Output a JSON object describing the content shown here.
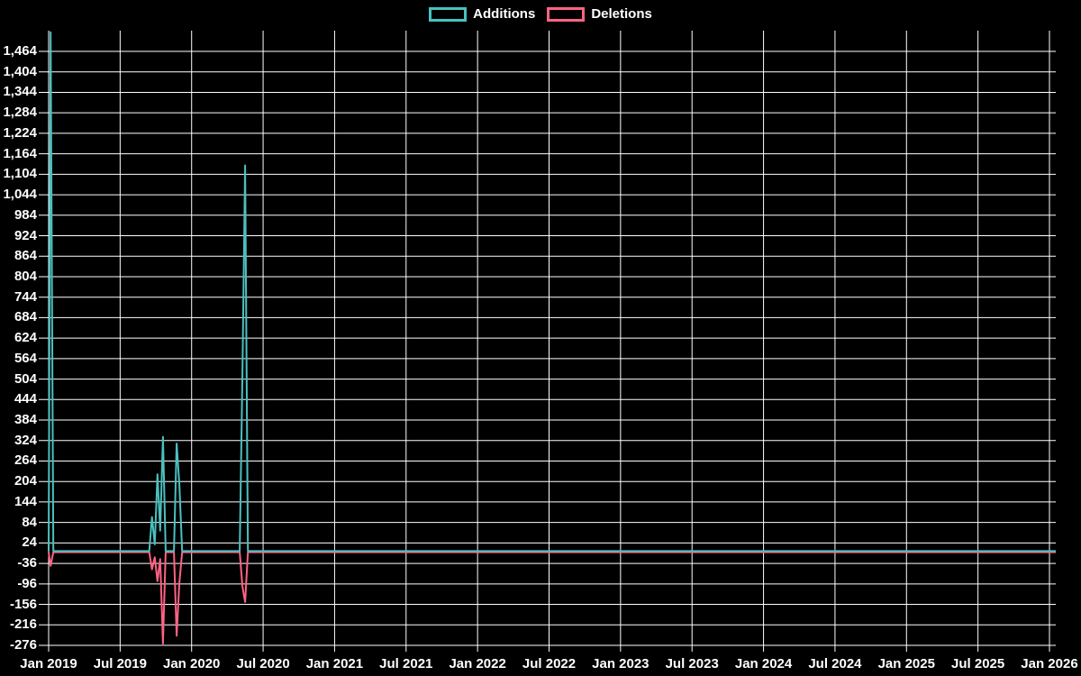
{
  "legend": {
    "items": [
      {
        "label": "Additions",
        "color": "#4bc0c0"
      },
      {
        "label": "Deletions",
        "color": "#ff6384"
      }
    ]
  },
  "chart_data": {
    "type": "line",
    "title": "",
    "xlabel": "",
    "ylabel": "",
    "grid": true,
    "legend_position": "top-center",
    "background_color": "#000000",
    "grid_color": "#ffffff",
    "text_color": "#ffffff",
    "x_axis": {
      "tick_labels": [
        "Jan 2019",
        "Jul 2019",
        "Jan 2020",
        "Jul 2020",
        "Jan 2021",
        "Jul 2021",
        "Jan 2022",
        "Jul 2022",
        "Jan 2023",
        "Jul 2023",
        "Jan 2024",
        "Jul 2024",
        "Jan 2025",
        "Jul 2025",
        "Jan 2026"
      ],
      "range_start": "Jan 2019",
      "range_end": "Jan 2026"
    },
    "y_axis": {
      "min": -276,
      "max": 1464,
      "step": 60,
      "tick_labels": [
        "1,464",
        "1,404",
        "1,344",
        "1,284",
        "1,224",
        "1,164",
        "1,104",
        "1,044",
        "984",
        "924",
        "864",
        "804",
        "744",
        "684",
        "624",
        "564",
        "504",
        "444",
        "384",
        "324",
        "264",
        "204",
        "144",
        "84",
        "24",
        "-36",
        "-96",
        "-156",
        "-216",
        "-276"
      ]
    },
    "series": [
      {
        "name": "Additions",
        "color": "#4bc0c0"
      },
      {
        "name": "Deletions",
        "color": "#ff6384"
      }
    ],
    "weeks_note": "weekly values; both series are 0 for every week not listed",
    "weeks": [
      [
        "2019-01-01",
        0,
        0
      ],
      [
        "2019-01-06",
        1520,
        -40
      ],
      [
        "2019-01-13",
        0,
        0
      ],
      [
        "2019-09-15",
        0,
        0
      ],
      [
        "2019-09-22",
        100,
        -50
      ],
      [
        "2019-09-29",
        20,
        -15
      ],
      [
        "2019-10-06",
        225,
        -85
      ],
      [
        "2019-10-13",
        60,
        -20
      ],
      [
        "2019-10-20",
        335,
        -268
      ],
      [
        "2019-10-27",
        0,
        0
      ],
      [
        "2019-11-17",
        0,
        0
      ],
      [
        "2019-11-24",
        315,
        -245
      ],
      [
        "2019-12-01",
        195,
        -90
      ],
      [
        "2019-12-08",
        0,
        0
      ],
      [
        "2020-05-03",
        0,
        0
      ],
      [
        "2020-05-10",
        515,
        -100
      ],
      [
        "2020-05-17",
        1130,
        -146
      ],
      [
        "2020-05-24",
        0,
        0
      ],
      [
        "2026-01-17",
        0,
        0
      ]
    ]
  }
}
